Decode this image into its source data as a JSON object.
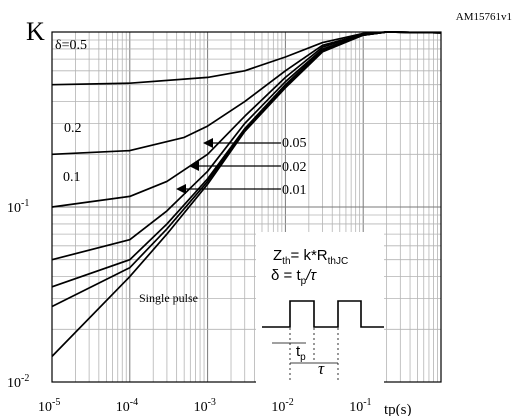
{
  "figure_id": "AM15761v1",
  "chart_data": {
    "type": "line",
    "title": "",
    "ylabel": "K",
    "xlabel": "tp(s)",
    "x_scale": "log",
    "y_scale": "log",
    "xlim": [
      1e-05,
      1
    ],
    "ylim": [
      0.01,
      1
    ],
    "grid": true,
    "x_tick_labels": [
      {
        "base": "10",
        "exp": "-5",
        "value": 1e-05
      },
      {
        "base": "10",
        "exp": "-4",
        "value": 0.0001
      },
      {
        "base": "10",
        "exp": "-3",
        "value": 0.001
      },
      {
        "base": "10",
        "exp": "-2",
        "value": 0.01
      },
      {
        "base": "10",
        "exp": "-1",
        "value": 0.1
      }
    ],
    "y_tick_labels": [
      {
        "base": "10",
        "exp": "-2",
        "value": 0.01
      },
      {
        "base": "10",
        "exp": "-1",
        "value": 0.1
      }
    ],
    "series": [
      {
        "name": "δ=0.5",
        "label": "δ=0.5",
        "x": [
          1e-05,
          0.0001,
          0.001,
          0.003,
          0.01,
          0.03,
          0.1,
          0.2,
          1
        ],
        "y": [
          0.5,
          0.51,
          0.55,
          0.6,
          0.72,
          0.87,
          0.98,
          1.0,
          0.99
        ]
      },
      {
        "name": "0.2",
        "label": "0.2",
        "x": [
          1e-05,
          0.0001,
          0.0005,
          0.001,
          0.003,
          0.01,
          0.03,
          0.1,
          0.2,
          1
        ],
        "y": [
          0.2,
          0.21,
          0.25,
          0.29,
          0.4,
          0.6,
          0.84,
          0.97,
          1.0,
          0.99
        ]
      },
      {
        "name": "0.1",
        "label": "0.1",
        "x": [
          1e-05,
          0.0001,
          0.0003,
          0.001,
          0.003,
          0.01,
          0.03,
          0.1,
          0.2,
          1
        ],
        "y": [
          0.1,
          0.115,
          0.14,
          0.2,
          0.33,
          0.55,
          0.82,
          0.97,
          1.0,
          0.99
        ]
      },
      {
        "name": "0.05",
        "label": "0.05",
        "x": [
          1e-05,
          0.0001,
          0.0003,
          0.001,
          0.003,
          0.01,
          0.03,
          0.1,
          0.2,
          1
        ],
        "y": [
          0.05,
          0.065,
          0.095,
          0.16,
          0.3,
          0.52,
          0.8,
          0.96,
          1.0,
          0.99
        ]
      },
      {
        "name": "0.02",
        "label": "0.02",
        "x": [
          1e-05,
          0.0001,
          0.0003,
          0.001,
          0.003,
          0.01,
          0.03,
          0.1,
          0.2,
          1
        ],
        "y": [
          0.035,
          0.05,
          0.08,
          0.145,
          0.28,
          0.5,
          0.79,
          0.96,
          1.0,
          0.99
        ]
      },
      {
        "name": "0.01",
        "label": "0.01",
        "x": [
          1e-05,
          0.0001,
          0.0003,
          0.001,
          0.003,
          0.01,
          0.03,
          0.1,
          0.2,
          1
        ],
        "y": [
          0.027,
          0.045,
          0.075,
          0.14,
          0.275,
          0.49,
          0.78,
          0.96,
          1.0,
          0.99
        ]
      },
      {
        "name": "Single pulse",
        "label": "Single pulse",
        "x": [
          1e-05,
          0.0001,
          0.0003,
          0.001,
          0.003,
          0.01,
          0.03,
          0.1,
          0.2,
          1
        ],
        "y": [
          0.014,
          0.04,
          0.07,
          0.135,
          0.27,
          0.48,
          0.77,
          0.96,
          1.0,
          0.99
        ]
      }
    ],
    "annotations": {
      "formula_line1": {
        "main": "Z",
        "sub1": "th",
        "mid": "= k*R",
        "sub2": "thJC"
      },
      "formula_line2": {
        "main": "δ = t",
        "sub": "p",
        "tail": "/τ"
      },
      "pulse_tp_label": {
        "main": "t",
        "sub": "p"
      },
      "pulse_period_label": "τ"
    }
  }
}
